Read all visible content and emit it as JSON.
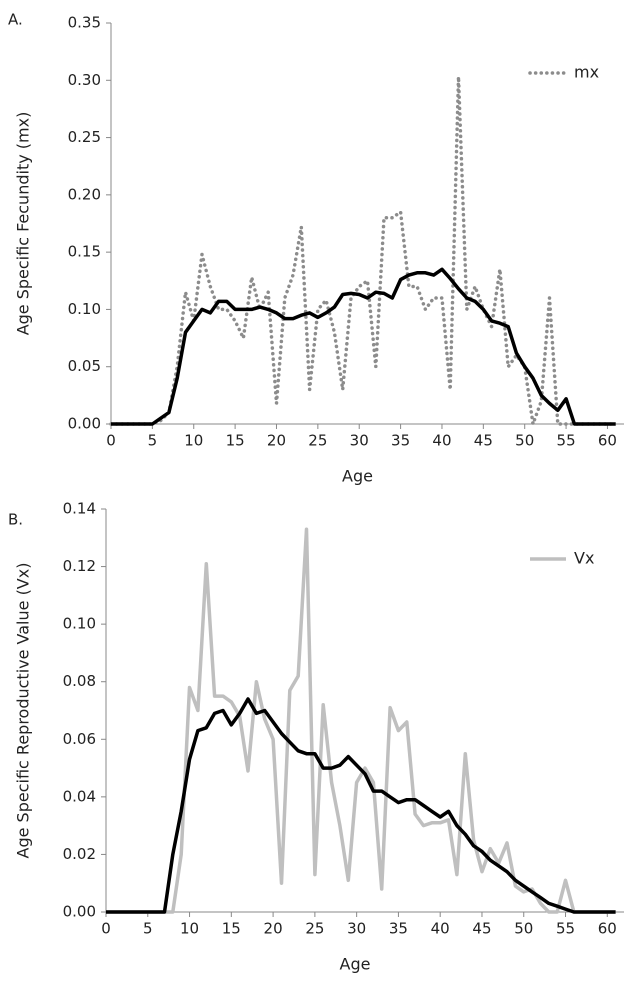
{
  "chart_data": [
    {
      "type": "line",
      "label": "A.",
      "ylabel": "Age Specific Fecundity (mx)",
      "xlabel": "Age",
      "x": [
        0,
        1,
        2,
        3,
        4,
        5,
        6,
        7,
        8,
        9,
        10,
        11,
        12,
        13,
        14,
        15,
        16,
        17,
        18,
        19,
        20,
        21,
        22,
        23,
        24,
        25,
        26,
        27,
        28,
        29,
        30,
        31,
        32,
        33,
        34,
        35,
        36,
        37,
        38,
        39,
        40,
        41,
        42,
        43,
        44,
        45,
        46,
        47,
        48,
        49,
        50,
        51,
        52,
        53,
        54,
        55,
        56,
        57,
        58,
        59,
        60,
        61
      ],
      "series": [
        {
          "name": "mx",
          "color": "#8c8c8c",
          "style": "dotted",
          "values": [
            0,
            0,
            0,
            0,
            0,
            0,
            0.003,
            0.01,
            0.05,
            0.115,
            0.09,
            0.148,
            0.12,
            0.1,
            0.1,
            0.09,
            0.075,
            0.128,
            0.1,
            0.115,
            0.018,
            0.11,
            0.13,
            0.172,
            0.03,
            0.1,
            0.108,
            0.08,
            0.03,
            0.11,
            0.12,
            0.125,
            0.05,
            0.18,
            0.18,
            0.185,
            0.12,
            0.12,
            0.1,
            0.11,
            0.11,
            0.03,
            0.303,
            0.1,
            0.12,
            0.1,
            0.085,
            0.135,
            0.05,
            0.06,
            0.05,
            0,
            0.02,
            0.11,
            0,
            0,
            0,
            0,
            0,
            0,
            0,
            0
          ]
        },
        {
          "color": "#000000",
          "style": "solid",
          "values": [
            0,
            0,
            0,
            0,
            0,
            0,
            0.005,
            0.01,
            0.04,
            0.08,
            0.09,
            0.1,
            0.097,
            0.107,
            0.107,
            0.1,
            0.1,
            0.1,
            0.102,
            0.1,
            0.097,
            0.092,
            0.092,
            0.095,
            0.097,
            0.093,
            0.097,
            0.102,
            0.113,
            0.114,
            0.113,
            0.11,
            0.115,
            0.114,
            0.11,
            0.126,
            0.13,
            0.132,
            0.132,
            0.13,
            0.135,
            0.127,
            0.118,
            0.11,
            0.107,
            0.1,
            0.09,
            0.088,
            0.085,
            0.062,
            0.05,
            0.04,
            0.025,
            0.018,
            0.012,
            0.022,
            0,
            0,
            0,
            0,
            0,
            0
          ]
        }
      ],
      "xlim": [
        0,
        62
      ],
      "xticks": [
        0,
        5,
        10,
        15,
        20,
        25,
        30,
        35,
        40,
        45,
        50,
        55,
        60
      ],
      "ylim": [
        0,
        0.35
      ],
      "yticks": [
        {
          "value": 0,
          "label": "0.00"
        },
        {
          "value": 0.05,
          "label": "0.05"
        },
        {
          "value": 0.1,
          "label": "0.10"
        },
        {
          "value": 0.15,
          "label": "0.15"
        },
        {
          "value": 0.2,
          "label": "0.20"
        },
        {
          "value": 0.25,
          "label": "0.25"
        },
        {
          "value": 0.3,
          "label": "0.30"
        },
        {
          "value": 0.35,
          "label": "0.35"
        }
      ],
      "legend": "top-right"
    },
    {
      "type": "line",
      "label": "B.",
      "ylabel": "Age Specific Reproductive Value (Vx)",
      "xlabel": "Age",
      "x": [
        0,
        1,
        2,
        3,
        4,
        5,
        6,
        7,
        8,
        9,
        10,
        11,
        12,
        13,
        14,
        15,
        16,
        17,
        18,
        19,
        20,
        21,
        22,
        23,
        24,
        25,
        26,
        27,
        28,
        29,
        30,
        31,
        32,
        33,
        34,
        35,
        36,
        37,
        38,
        39,
        40,
        41,
        42,
        43,
        44,
        45,
        46,
        47,
        48,
        49,
        50,
        51,
        52,
        53,
        54,
        55,
        56,
        57,
        58,
        59,
        60,
        61
      ],
      "series": [
        {
          "name": "Vx",
          "color": "#bfbfbf",
          "style": "solid",
          "values": [
            0,
            0,
            0,
            0,
            0,
            0,
            0,
            0,
            0,
            0.02,
            0.078,
            0.07,
            0.121,
            0.075,
            0.075,
            0.073,
            0.068,
            0.049,
            0.08,
            0.067,
            0.06,
            0.01,
            0.077,
            0.082,
            0.133,
            0.013,
            0.072,
            0.045,
            0.03,
            0.011,
            0.045,
            0.05,
            0.045,
            0.008,
            0.071,
            0.063,
            0.066,
            0.034,
            0.03,
            0.031,
            0.031,
            0.032,
            0.013,
            0.055,
            0.025,
            0.014,
            0.022,
            0.017,
            0.024,
            0.009,
            0.007,
            0.008,
            0.003,
            0,
            0,
            0.011,
            0,
            0,
            0,
            0,
            0,
            0
          ]
        },
        {
          "color": "#000000",
          "style": "solid",
          "values": [
            0,
            0,
            0,
            0,
            0,
            0,
            0,
            0,
            0.02,
            0.035,
            0.053,
            0.063,
            0.064,
            0.069,
            0.07,
            0.065,
            0.069,
            0.074,
            0.069,
            0.07,
            0.066,
            0.062,
            0.059,
            0.056,
            0.055,
            0.055,
            0.05,
            0.05,
            0.051,
            0.054,
            0.051,
            0.048,
            0.042,
            0.042,
            0.04,
            0.038,
            0.039,
            0.039,
            0.037,
            0.035,
            0.033,
            0.035,
            0.03,
            0.027,
            0.023,
            0.021,
            0.018,
            0.016,
            0.014,
            0.011,
            0.009,
            0.007,
            0.005,
            0.003,
            0.002,
            0.001,
            0,
            0,
            0,
            0,
            0,
            0
          ]
        }
      ],
      "xlim": [
        0,
        62
      ],
      "xticks": [
        0,
        5,
        10,
        15,
        20,
        25,
        30,
        35,
        40,
        45,
        50,
        55,
        60
      ],
      "ylim": [
        0,
        0.14
      ],
      "yticks": [
        {
          "value": 0,
          "label": "0.00"
        },
        {
          "value": 0.02,
          "label": "0.02"
        },
        {
          "value": 0.04,
          "label": "0.04"
        },
        {
          "value": 0.06,
          "label": "0.06"
        },
        {
          "value": 0.08,
          "label": "0.08"
        },
        {
          "value": 0.1,
          "label": "0.10"
        },
        {
          "value": 0.12,
          "label": "0.12"
        },
        {
          "value": 0.14,
          "label": "0.14"
        }
      ],
      "legend": "top-right"
    }
  ]
}
